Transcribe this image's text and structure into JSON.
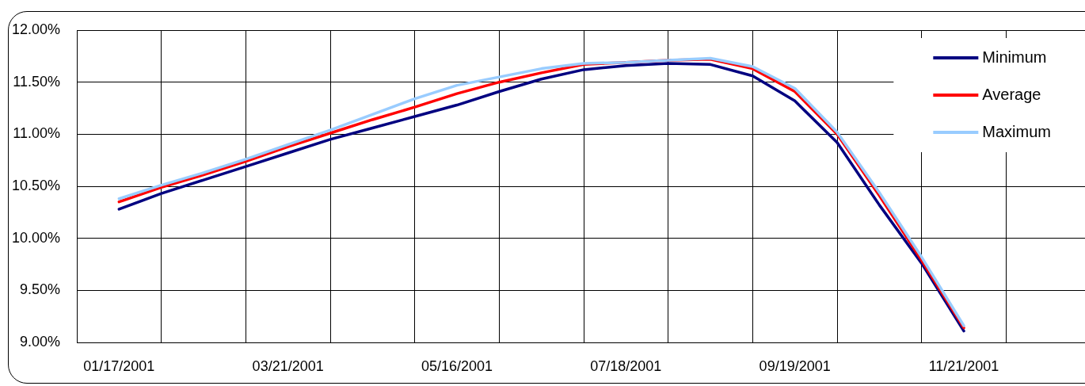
{
  "chart_data": {
    "type": "line",
    "categories": [
      null,
      "01/17/2001",
      null,
      null,
      null,
      "03/21/2001",
      null,
      null,
      null,
      "05/16/2001",
      null,
      null,
      null,
      "07/18/2001",
      null,
      null,
      null,
      "09/19/2001",
      null,
      null,
      null,
      "11/21/2001",
      null,
      null,
      null
    ],
    "series": [
      {
        "name": "Minimum",
        "color": "#000080",
        "values": [
          null,
          10.28,
          10.43,
          10.56,
          10.69,
          10.82,
          10.95,
          11.06,
          11.17,
          11.28,
          11.41,
          11.53,
          11.62,
          11.66,
          11.68,
          11.67,
          11.56,
          11.32,
          10.92,
          10.32,
          9.76,
          9.11,
          null,
          null,
          null
        ]
      },
      {
        "name": "Average",
        "color": "#ff0000",
        "values": [
          null,
          10.35,
          10.49,
          10.61,
          10.74,
          10.88,
          11.01,
          11.14,
          11.26,
          11.39,
          11.5,
          11.59,
          11.67,
          11.69,
          11.71,
          11.72,
          11.63,
          11.41,
          11.0,
          10.41,
          9.79,
          9.14,
          null,
          null,
          null
        ]
      },
      {
        "name": "Maximum",
        "color": "#99ccff",
        "values": [
          null,
          10.38,
          10.51,
          10.63,
          10.76,
          10.9,
          11.04,
          11.19,
          11.34,
          11.47,
          11.55,
          11.63,
          11.68,
          11.69,
          11.71,
          11.73,
          11.65,
          11.44,
          11.02,
          10.44,
          9.82,
          9.16,
          null,
          null,
          null
        ]
      }
    ],
    "ylim": [
      9,
      12
    ],
    "yticks": [
      {
        "value": 9,
        "label": "9.00%"
      },
      {
        "value": 9.5,
        "label": "9.50%"
      },
      {
        "value": 10,
        "label": "10.00%"
      },
      {
        "value": 10.5,
        "label": "10.50%"
      },
      {
        "value": 11,
        "label": "11.00%"
      },
      {
        "value": 11.5,
        "label": "11.50%"
      },
      {
        "value": 12,
        "label": "12.00%"
      }
    ],
    "grid": true,
    "legend": "top right",
    "marker": "none"
  }
}
